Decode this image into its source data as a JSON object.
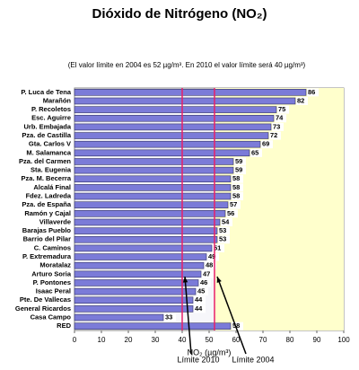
{
  "chart_data": {
    "type": "hbar",
    "title": "Dióxido de Nitrógeno (NO₂)",
    "subtitle": "(El valor límite en 2004 es 52 µg/m³. En 2010 el valor límite será 40 µg/m³)",
    "x_label": "NO₂ (µg/m³)",
    "categories": [
      "P. Luca de Tena",
      "Marañón",
      "P. Recoletos",
      "Esc. Aguirre",
      "Urb. Embajada",
      "Pza. de Castilla",
      "Gta. Carlos V",
      "M. Salamanca",
      "Pza. del Carmen",
      "Sta. Eugenia",
      "Pza. M. Becerra",
      "Alcalá Final",
      "Fdez. Ladreda",
      "Pza. de España",
      "Ramón y Cajal",
      "Villaverde",
      "Barajas Pueblo",
      "Barrio del Pilar",
      "C. Caminos",
      "P. Extremadura",
      "Moratalaz",
      "Arturo Soria",
      "P. Pontones",
      "Isaac Peral",
      "Pte. De Vallecas",
      "General Ricardos",
      "Casa Campo",
      "RED"
    ],
    "values": [
      86,
      82,
      75,
      74,
      73,
      72,
      69,
      65,
      59,
      59,
      58,
      58,
      58,
      57,
      56,
      54,
      53,
      53,
      51,
      49,
      48,
      47,
      46,
      45,
      44,
      44,
      33,
      58
    ],
    "color": "#7b7bd8",
    "xlim": [
      0,
      100
    ],
    "xticks": [
      0,
      10,
      20,
      30,
      40,
      50,
      60,
      70,
      80,
      90,
      100
    ],
    "reference_lines": [
      {
        "value": 40,
        "label": "Límite 2010"
      },
      {
        "value": 52,
        "label": "Límite 2004"
      }
    ],
    "reference_color": "#e8206a",
    "exceed_color": "#ffffcc"
  }
}
